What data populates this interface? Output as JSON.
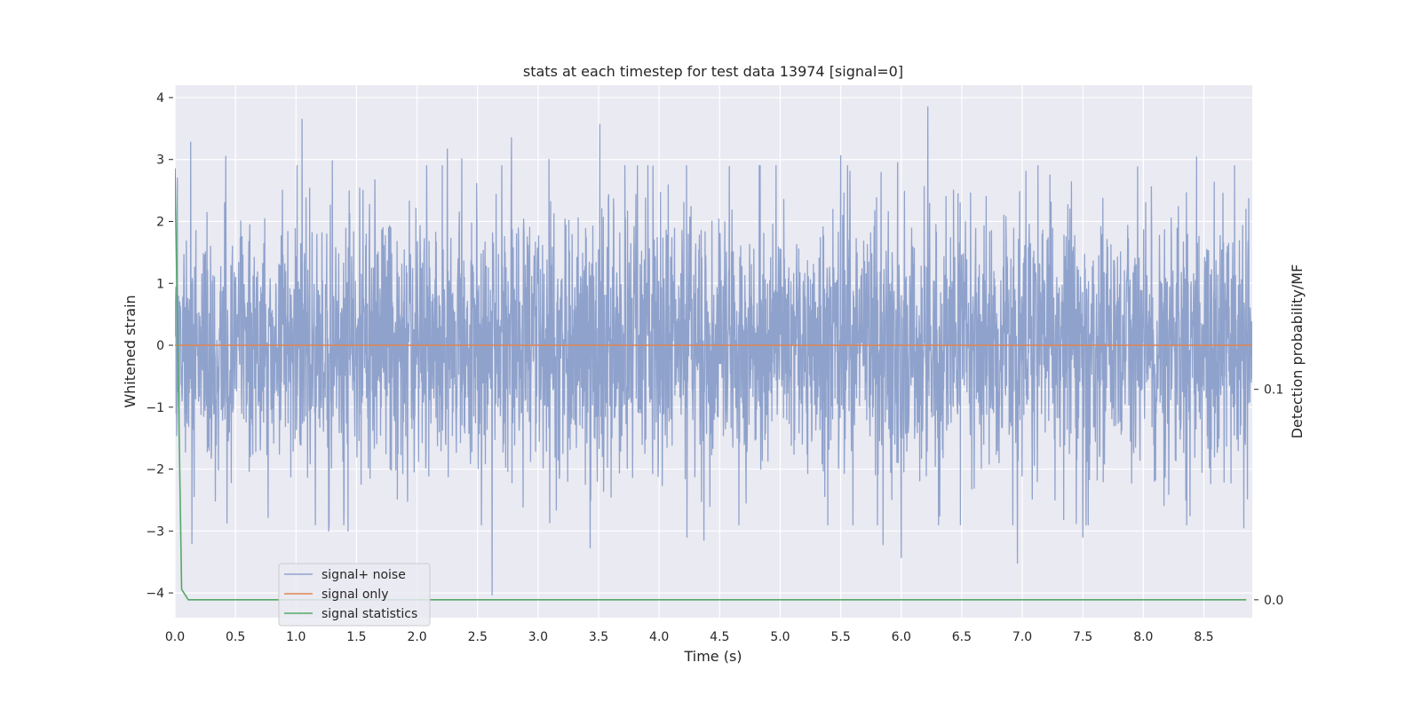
{
  "chart_data": {
    "type": "line",
    "title": "stats at each timestep for test data 13974 [signal=0]",
    "xlabel": "Time (s)",
    "ylabel": "Whitened strain",
    "y2label": "Detection probability/MF",
    "xlim": [
      0,
      8.9
    ],
    "ylim": [
      -4.4,
      4.2
    ],
    "y2lim": [
      -0.0085,
      0.2445
    ],
    "xticks": [
      0.0,
      0.5,
      1.0,
      1.5,
      2.0,
      2.5,
      3.0,
      3.5,
      4.0,
      4.5,
      5.0,
      5.5,
      6.0,
      6.5,
      7.0,
      7.5,
      8.0,
      8.5
    ],
    "xtick_labels": [
      "0.0",
      "0.5",
      "1.0",
      "1.5",
      "2.0",
      "2.5",
      "3.0",
      "3.5",
      "4.0",
      "4.5",
      "5.0",
      "5.5",
      "6.0",
      "6.5",
      "7.0",
      "7.5",
      "8.0",
      "8.5"
    ],
    "yticks": [
      4,
      3,
      2,
      1,
      0,
      -1,
      -2,
      -3,
      -4
    ],
    "ytick_labels": [
      "4",
      "3",
      "2",
      "1",
      "0",
      "−1",
      "−2",
      "−3",
      "−4"
    ],
    "y2ticks": [
      0.1,
      0.0
    ],
    "y2tick_labels": [
      "0.1",
      "0.0"
    ],
    "grid": true,
    "legend_position": "lower-left",
    "series": [
      {
        "name": "signal+ noise",
        "color": "#8fa2cc",
        "axis": "left",
        "kind": "noise",
        "x_range": [
          0,
          8.9
        ],
        "sample_rate_hz": 2048,
        "std": 1.0,
        "extremes": [
          {
            "x": 0.02,
            "y": 2.7
          },
          {
            "x": 0.13,
            "y": 3.28
          },
          {
            "x": 0.14,
            "y": -3.2
          },
          {
            "x": 0.42,
            "y": 3.05
          },
          {
            "x": 0.43,
            "y": -2.87
          },
          {
            "x": 0.77,
            "y": -2.78
          },
          {
            "x": 1.05,
            "y": 3.65
          },
          {
            "x": 1.27,
            "y": -3.0
          },
          {
            "x": 1.3,
            "y": 2.98
          },
          {
            "x": 1.43,
            "y": -3.0
          },
          {
            "x": 2.25,
            "y": 3.17
          },
          {
            "x": 2.37,
            "y": 3.01
          },
          {
            "x": 2.62,
            "y": -4.03
          },
          {
            "x": 2.78,
            "y": 3.35
          },
          {
            "x": 3.09,
            "y": 3.0
          },
          {
            "x": 3.43,
            "y": -3.27
          },
          {
            "x": 3.51,
            "y": 3.57
          },
          {
            "x": 4.23,
            "y": -3.1
          },
          {
            "x": 4.37,
            "y": -3.15
          },
          {
            "x": 5.5,
            "y": 3.06
          },
          {
            "x": 5.85,
            "y": -3.22
          },
          {
            "x": 5.97,
            "y": 2.95
          },
          {
            "x": 6.0,
            "y": -3.43
          },
          {
            "x": 6.22,
            "y": 3.85
          },
          {
            "x": 6.96,
            "y": -3.52
          },
          {
            "x": 7.5,
            "y": -3.1
          },
          {
            "x": 8.44,
            "y": 3.04
          },
          {
            "x": 8.83,
            "y": -2.95
          }
        ]
      },
      {
        "name": "signal only",
        "color": "#dd8452",
        "axis": "left",
        "x": [
          0,
          8.9
        ],
        "y": [
          0,
          0
        ]
      },
      {
        "name": "signal statistics",
        "color": "#55a868",
        "axis": "right",
        "x": [
          0.0,
          0.055,
          0.11,
          0.5,
          1.0,
          2.0,
          3.0,
          4.0,
          5.0,
          6.0,
          7.0,
          8.0,
          8.85
        ],
        "y": [
          0.205,
          0.005,
          0.0,
          0.0,
          0.0,
          0.0,
          0.0,
          0.0,
          0.0,
          0.0,
          0.0,
          0.0,
          0.0
        ]
      }
    ]
  }
}
